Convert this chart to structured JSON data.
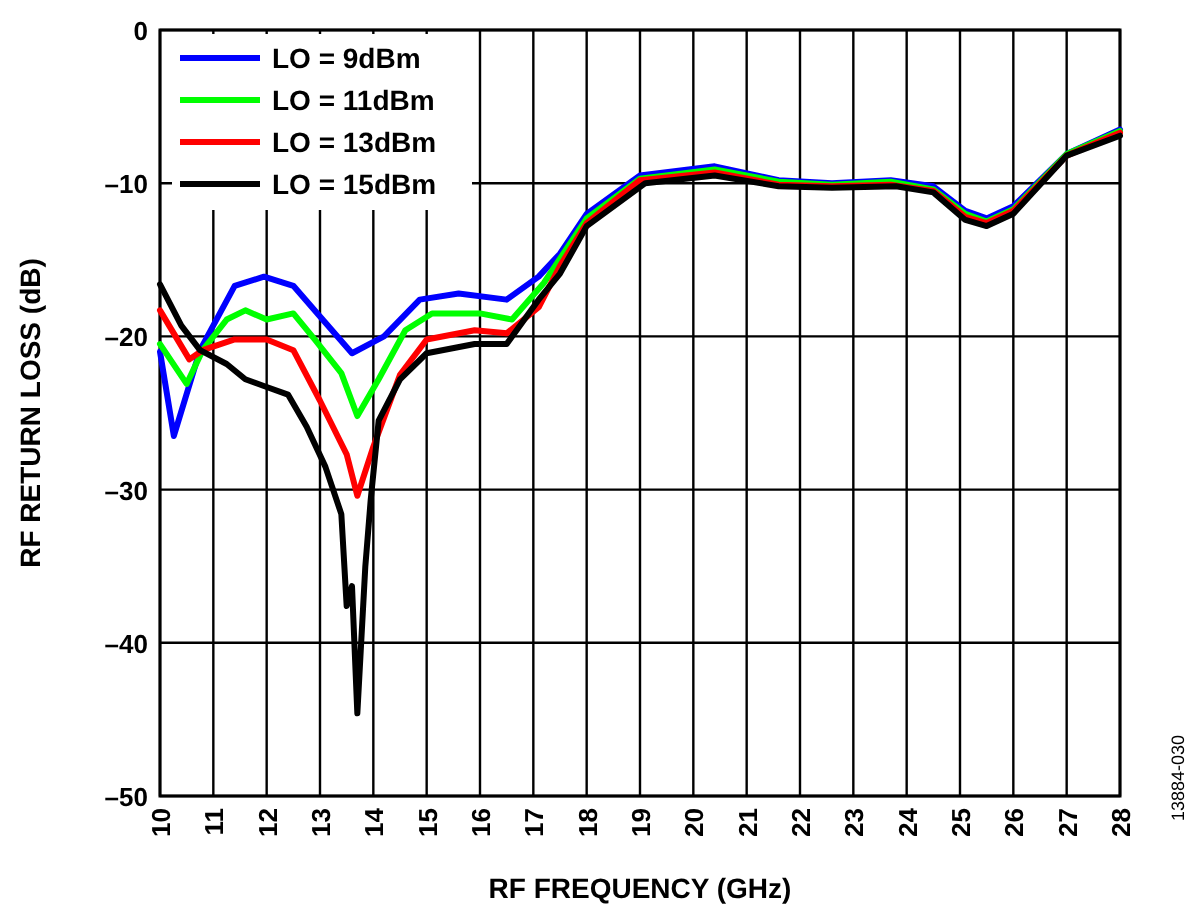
{
  "chart_data": {
    "type": "line",
    "xlabel": "RF FREQUENCY (GHz)",
    "ylabel": "RF RETURN LOSS (dB)",
    "annotations": [
      "13884-030"
    ],
    "xlim": [
      10,
      28
    ],
    "xticks": [
      10,
      11,
      12,
      13,
      14,
      15,
      16,
      17,
      18,
      19,
      20,
      21,
      22,
      23,
      24,
      25,
      26,
      27,
      28
    ],
    "ylim": [
      -50,
      0
    ],
    "yticks": [
      0,
      {
        "value": -10,
        "label": "–10"
      },
      {
        "value": -20,
        "label": "–20"
      },
      {
        "value": -30,
        "label": "–30"
      },
      {
        "value": -40,
        "label": "–40"
      },
      {
        "value": -50,
        "label": "–50"
      }
    ],
    "grid": true,
    "legend": "top left",
    "line_style": "solid",
    "marker": "none",
    "series": [
      {
        "name": "LO = 9dBm",
        "color": "#0000ff",
        "x": [
          10,
          10.26,
          10.75,
          11.4,
          11.95,
          12.5,
          13,
          13.6,
          14.2,
          14.87,
          15.6,
          16.5,
          17.1,
          17.5,
          18,
          19,
          20.4,
          21.6,
          22.6,
          23.7,
          24.5,
          25.1,
          25.5,
          26,
          27,
          28
        ],
        "values": [
          -21,
          -26.5,
          -20.9,
          -16.7,
          -16.1,
          -16.7,
          -18.7,
          -21.1,
          -20,
          -17.6,
          -17.2,
          -17.6,
          -16.1,
          -14.6,
          -12,
          -9.5,
          -8.9,
          -9.8,
          -10,
          -9.8,
          -10.2,
          -11.8,
          -12.3,
          -11.5,
          -8.1,
          -6.5
        ]
      },
      {
        "name": "LO = 11dBm",
        "color": "#00ff00",
        "x": [
          10,
          10.5,
          10.8,
          11.25,
          11.6,
          12,
          12.5,
          12.9,
          13.4,
          13.7,
          14.1,
          14.6,
          15.1,
          16,
          16.6,
          17.2,
          18,
          19,
          20.4,
          21.6,
          22.6,
          23.7,
          24.5,
          25.1,
          25.5,
          26,
          27,
          28
        ],
        "values": [
          -20.5,
          -23.1,
          -20.9,
          -18.9,
          -18.3,
          -18.9,
          -18.5,
          -20.2,
          -22.4,
          -25.2,
          -22.8,
          -19.6,
          -18.5,
          -18.5,
          -18.9,
          -16.5,
          -12.3,
          -9.7,
          -9.1,
          -9.9,
          -10.1,
          -9.9,
          -10.4,
          -12,
          -12.5,
          -11.7,
          -8.1,
          -6.6
        ]
      },
      {
        "name": "LO = 13dBm",
        "color": "#ff0000",
        "x": [
          10,
          10.55,
          10.8,
          11.4,
          12,
          12.5,
          13,
          13.5,
          13.7,
          14,
          14.5,
          15,
          15.9,
          16.5,
          17.1,
          17.5,
          18,
          19,
          20.4,
          21.6,
          22.6,
          23.7,
          24.5,
          25.1,
          25.5,
          26,
          27,
          28
        ],
        "values": [
          -18.3,
          -21.5,
          -20.9,
          -20.2,
          -20.2,
          -20.9,
          -24.2,
          -27.7,
          -30.4,
          -27.2,
          -22.5,
          -20.2,
          -19.6,
          -19.8,
          -18.1,
          -15.4,
          -12.6,
          -9.8,
          -9.3,
          -10.1,
          -10.2,
          -10.1,
          -10.5,
          -12.2,
          -12.6,
          -11.8,
          -8.2,
          -6.7
        ]
      },
      {
        "name": "LO = 15dBm",
        "color": "#000000",
        "x": [
          10,
          10.4,
          10.75,
          11.25,
          11.6,
          12,
          12.4,
          12.75,
          13.1,
          13.4,
          13.5,
          13.6,
          13.7,
          13.85,
          13.95,
          14.1,
          14.5,
          15,
          15.9,
          16.5,
          17.1,
          17.5,
          18,
          19.1,
          20.4,
          21.6,
          22.6,
          23.8,
          24.5,
          25.1,
          25.5,
          26,
          27,
          28
        ],
        "values": [
          -16.6,
          -19.3,
          -20.9,
          -21.8,
          -22.8,
          -23.3,
          -23.8,
          -25.9,
          -28.5,
          -31.6,
          -37.6,
          -36.3,
          -44.6,
          -35,
          -30.7,
          -25.5,
          -22.8,
          -21.1,
          -20.5,
          -20.5,
          -17.6,
          -15.9,
          -12.8,
          -10,
          -9.5,
          -10.2,
          -10.3,
          -10.2,
          -10.6,
          -12.4,
          -12.8,
          -12,
          -8.2,
          -6.9
        ]
      }
    ]
  }
}
